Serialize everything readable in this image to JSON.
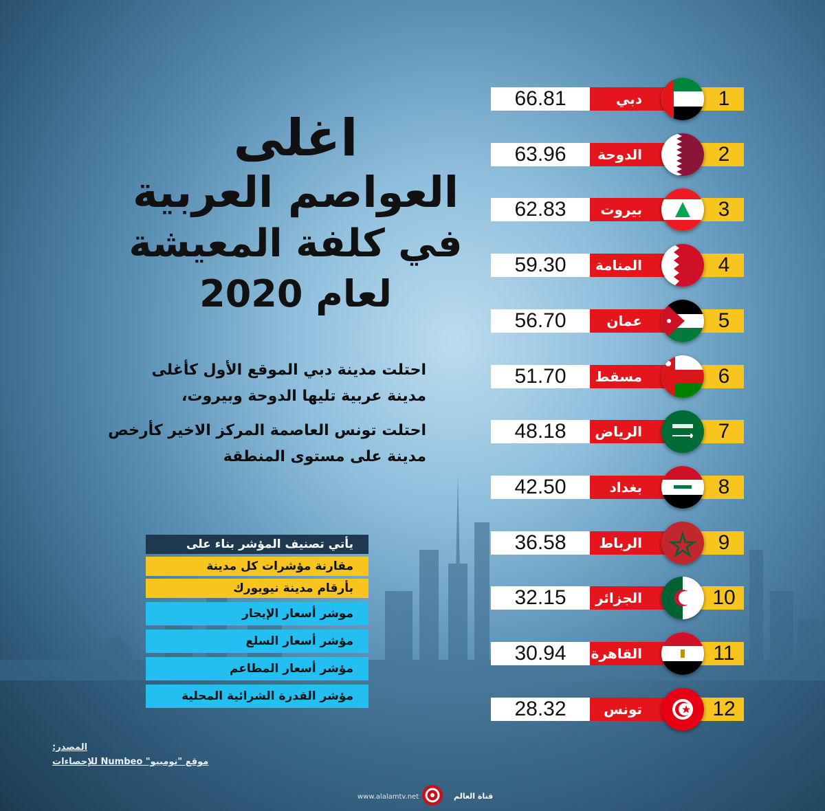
{
  "title": {
    "line1": "اغلى",
    "line2": "العواصم العربية",
    "line3": "في كلفة المعيشة",
    "line4": "لعام 2020"
  },
  "paragraph1": {
    "line1": "احتلت مدينة دبي الموقع الأول كأغلى",
    "line2": "مدينة عربية تليها الدوحة وبيروت،"
  },
  "paragraph2": {
    "line1": "احتلت تونس العاصمة المركز الاخير كأرخص",
    "line2": "مدينة على مستوى المنطقة"
  },
  "criteria": {
    "header": "يأتي تصنيف المؤشر بناء على",
    "basis_line1": "مقارنة مؤشرات كل مدينة",
    "basis_line2": "بأرقام مدينة نيويورك",
    "items": [
      "موشر أسعار الإيجار",
      "مؤشر أسعار السلع",
      "مؤشر أسعار المطاعم",
      "مؤشر القدرة الشرائية المحلية"
    ]
  },
  "source": {
    "label": "المصدر:",
    "text": "موقع \"نومبيو\" Numbeo للإحصاءات"
  },
  "footer": {
    "url": "www.alalamtv.net",
    "channel": "قناة العالم"
  },
  "colors": {
    "value_bg": "#ffffff",
    "city_bg": "#e4161c",
    "rank_bg": "#f7c51d",
    "criteria_head": "#1e3850",
    "criteria_yellow": "#f7c51d",
    "criteria_blue": "#22bff0"
  },
  "ranking": [
    {
      "rank": "1",
      "city": "دبي",
      "value": "66.81",
      "flag": "uae-flag-icon"
    },
    {
      "rank": "2",
      "city": "الدوحة",
      "value": "63.96",
      "flag": "qatar-flag-icon"
    },
    {
      "rank": "3",
      "city": "بيروت",
      "value": "62.83",
      "flag": "lebanon-flag-icon"
    },
    {
      "rank": "4",
      "city": "المنامة",
      "value": "59.30",
      "flag": "bahrain-flag-icon"
    },
    {
      "rank": "5",
      "city": "عمان",
      "value": "56.70",
      "flag": "jordan-flag-icon"
    },
    {
      "rank": "6",
      "city": "مسقط",
      "value": "51.70",
      "flag": "oman-flag-icon"
    },
    {
      "rank": "7",
      "city": "الرياض",
      "value": "48.18",
      "flag": "saudi-flag-icon"
    },
    {
      "rank": "8",
      "city": "بغداد",
      "value": "42.50",
      "flag": "iraq-flag-icon"
    },
    {
      "rank": "9",
      "city": "الرباط",
      "value": "36.58",
      "flag": "morocco-flag-icon"
    },
    {
      "rank": "10",
      "city": "الجزائر",
      "value": "32.15",
      "flag": "algeria-flag-icon"
    },
    {
      "rank": "11",
      "city": "القاهرة",
      "value": "30.94",
      "flag": "egypt-flag-icon"
    },
    {
      "rank": "12",
      "city": "تونس",
      "value": "28.32",
      "flag": "tunisia-flag-icon"
    }
  ]
}
